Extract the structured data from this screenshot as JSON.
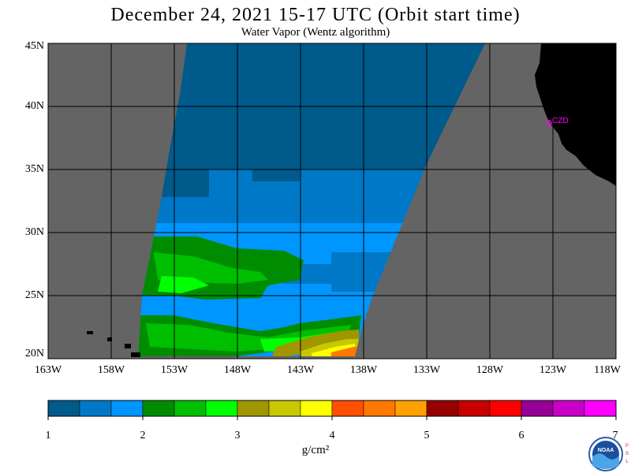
{
  "header": {
    "title": "December 24, 2021  15-17 UTC  (Orbit start time)",
    "subtitle": "Water Vapor (Wentz algorithm)"
  },
  "map": {
    "lat_labels": [
      "45N",
      "40N",
      "35N",
      "30N",
      "25N",
      "20N"
    ],
    "lon_labels": [
      "163W",
      "158W",
      "153W",
      "148W",
      "143W",
      "138W",
      "133W",
      "128W",
      "123W",
      "118W"
    ],
    "station_label": "CZD",
    "colors": {
      "background_gray": "#646464",
      "land": "#000000",
      "grid": "#000000",
      "station": "#ff00ff"
    }
  },
  "colorbar": {
    "tick_labels": [
      "1",
      "2",
      "3",
      "4",
      "5",
      "6",
      "7"
    ],
    "units": "g/cm²",
    "colors": [
      "#005a8c",
      "#0078c8",
      "#0096ff",
      "#008c00",
      "#00be00",
      "#00ff00",
      "#a09600",
      "#c8c800",
      "#ffff00",
      "#ff5000",
      "#ff7800",
      "#ffa000",
      "#960000",
      "#c80000",
      "#ff0000",
      "#960096",
      "#c800c8",
      "#ff00ff"
    ]
  },
  "logo": {
    "name": "NOAA",
    "side_letters": "PSL"
  }
}
